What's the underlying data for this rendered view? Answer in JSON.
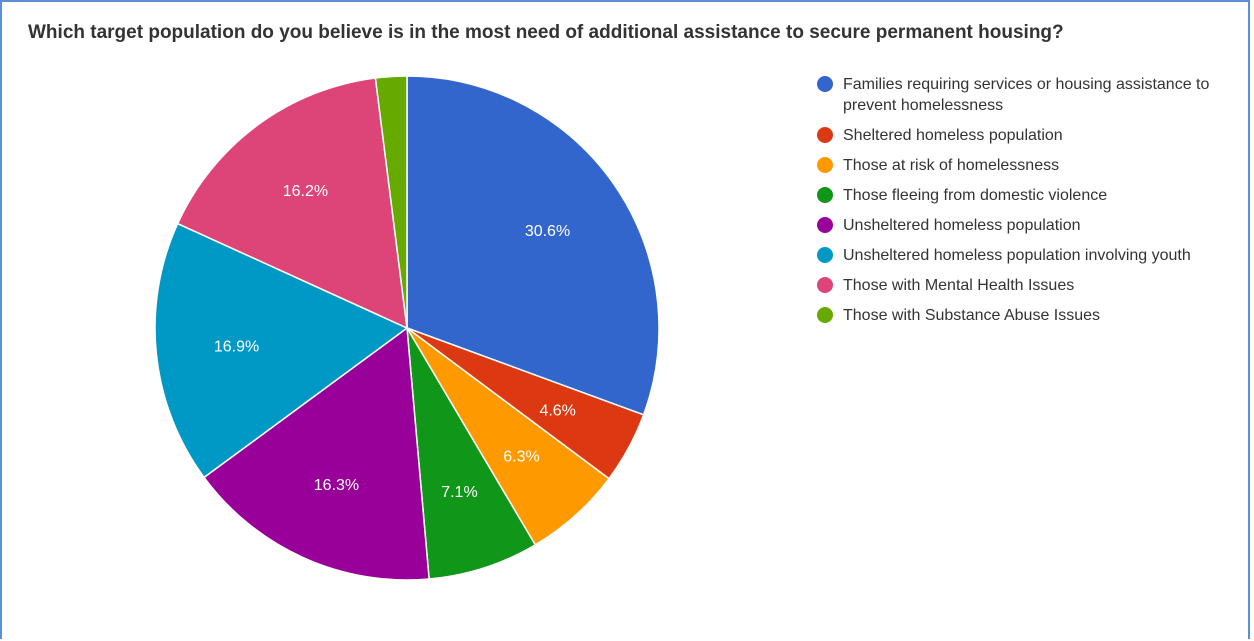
{
  "chart_data": {
    "type": "pie",
    "title": "Which target population do you believe is in the most need of additional assistance to secure permanent housing?",
    "legend_position": "right",
    "slices": [
      {
        "label": "Families requiring services or housing assistance to prevent homelessness",
        "value": 30.6,
        "display": "30.6%",
        "color": "#3366cc"
      },
      {
        "label": "Sheltered homeless population",
        "value": 4.6,
        "display": "4.6%",
        "color": "#dc3912"
      },
      {
        "label": "Those at risk of homelessness",
        "value": 6.3,
        "display": "6.3%",
        "color": "#ff9900"
      },
      {
        "label": "Those fleeing from domestic violence",
        "value": 7.1,
        "display": "7.1%",
        "color": "#109618"
      },
      {
        "label": "Unsheltered homeless population",
        "value": 16.3,
        "display": "16.3%",
        "color": "#990099"
      },
      {
        "label": "Unsheltered homeless population involving youth",
        "value": 16.9,
        "display": "16.9%",
        "color": "#0099c6"
      },
      {
        "label": "Those with Mental Health Issues",
        "value": 16.2,
        "display": "16.2%",
        "color": "#dd4477"
      },
      {
        "label": "Those with Substance Abuse Issues",
        "value": 2.0,
        "display": "",
        "color": "#66aa00"
      }
    ]
  }
}
